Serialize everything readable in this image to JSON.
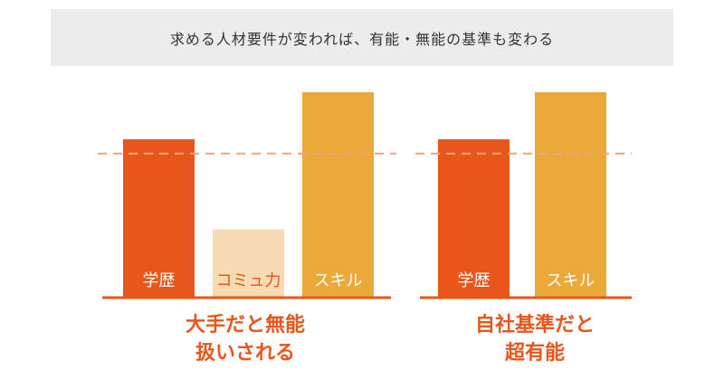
{
  "header": {
    "text": "求める人材要件が変われば、有能・無能の基準も変わる"
  },
  "colors": {
    "education_bar": "#e8561b",
    "communication_bar": "#f7dcb3",
    "skill_bar": "#eba93a",
    "baseline": "#e8561b",
    "threshold": "#f4a27a",
    "caption": "#e8561b",
    "label_light": "#ffffff",
    "label_accent": "#e8561b"
  },
  "chart_data": [
    {
      "type": "bar",
      "categories": [
        "学歴",
        "コミュ力",
        "スキル"
      ],
      "values": [
        77,
        33,
        100
      ],
      "threshold": 70,
      "ylim": [
        0,
        100
      ],
      "caption": "大手だと無能\n扱いされる"
    },
    {
      "type": "bar",
      "categories": [
        "学歴",
        "スキル"
      ],
      "values": [
        77,
        100
      ],
      "threshold": 70,
      "ylim": [
        0,
        100
      ],
      "caption": "自社基準だと\n超有能"
    }
  ]
}
